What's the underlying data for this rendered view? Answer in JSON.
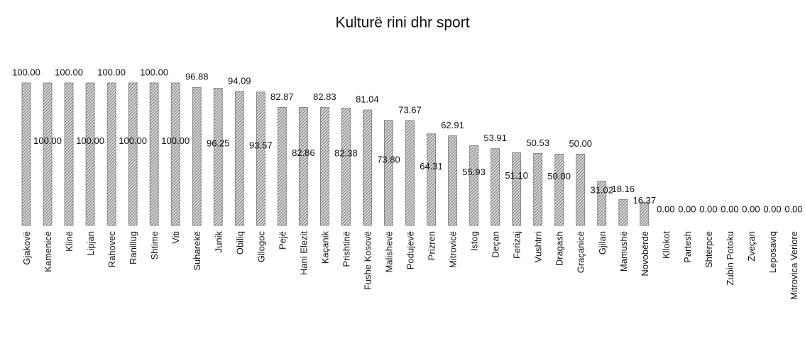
{
  "chart_data": {
    "type": "bar",
    "title": "Kulturë rini dhr sport",
    "categories": [
      "Gjakovë",
      "Kamenicë",
      "Klinë",
      "Lipjan",
      "Rahovec",
      "Ranillug",
      "Shtime",
      "Viti",
      "Suharekë",
      "Junik",
      "Obiliq",
      "Gllogoc",
      "Pejë",
      "Hani Elezit",
      "Kaçanik",
      "Prishtinë",
      "Fushe Kosovë",
      "Malishevë",
      "Podujevë",
      "Prizren",
      "Mitrovicë",
      "Istog",
      "Deçan",
      "Ferizaj",
      "Vushtrri",
      "Dragash",
      "Graçanicë",
      "Gjilan",
      "Mamushë",
      "Novobërdë",
      "Kllokot",
      "Partesh",
      "Shtërpcë",
      "Zubin Potoku",
      "Zveçan",
      "Leposaviq",
      "Mitrovica Veriore"
    ],
    "values": [
      100,
      100,
      100,
      100,
      100,
      100,
      100,
      100,
      96.88,
      96.25,
      94.09,
      93.57,
      82.87,
      82.86,
      82.83,
      82.38,
      81.04,
      73.8,
      73.67,
      64.31,
      62.91,
      55.93,
      53.91,
      51.1,
      50.53,
      50,
      50,
      31.02,
      18.16,
      16.37,
      0,
      0,
      0,
      0,
      0,
      0,
      0
    ],
    "value_labels": [
      "100.00",
      "100.00",
      "100.00",
      "100.00",
      "100.00",
      "100.00",
      "100.00",
      "100.00",
      "96.88",
      "96.25",
      "94.09",
      "93.57",
      "82.87",
      "82.86",
      "82.83",
      "82.38",
      "81.04",
      "73.80",
      "73.67",
      "64.31",
      "62.91",
      "55.93",
      "53.91",
      "51.10",
      "50.53",
      "50.00",
      "50.00",
      "31.02",
      "18.16",
      "16.37",
      "0.00",
      "0.00",
      "0.00",
      "0.00",
      "0.00",
      "0.00",
      "0.00"
    ],
    "color": "#777777"
  }
}
